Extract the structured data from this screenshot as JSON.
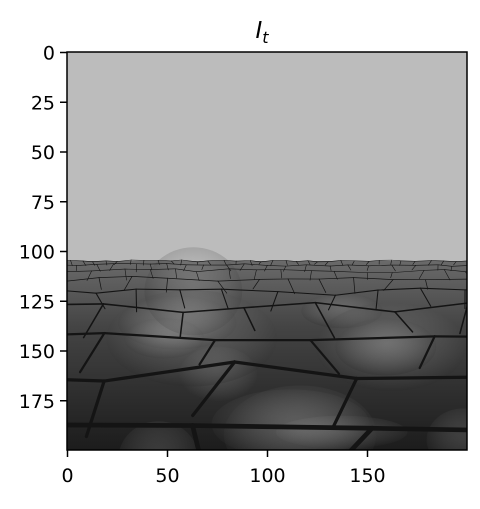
{
  "title": {
    "main": "I",
    "subscript": "t"
  },
  "image": {
    "width": 200,
    "height": 200,
    "horizon_row": 105,
    "sky_color": "#bcbcbc",
    "ground_top_color": "#6a6a6a",
    "ground_bottom_color": "#1c1c1c",
    "cell_edge_color": "#141414",
    "description_icon": "voronoi-ground-image"
  },
  "axes": {
    "x_ticks": [
      {
        "value": 0,
        "label": "0"
      },
      {
        "value": 50,
        "label": "50"
      },
      {
        "value": 100,
        "label": "100"
      },
      {
        "value": 150,
        "label": "150"
      }
    ],
    "y_ticks": [
      {
        "value": 0,
        "label": "0"
      },
      {
        "value": 25,
        "label": "25"
      },
      {
        "value": 50,
        "label": "50"
      },
      {
        "value": 75,
        "label": "75"
      },
      {
        "value": 100,
        "label": "100"
      },
      {
        "value": 125,
        "label": "125"
      },
      {
        "value": 150,
        "label": "150"
      },
      {
        "value": 175,
        "label": "175"
      }
    ]
  }
}
